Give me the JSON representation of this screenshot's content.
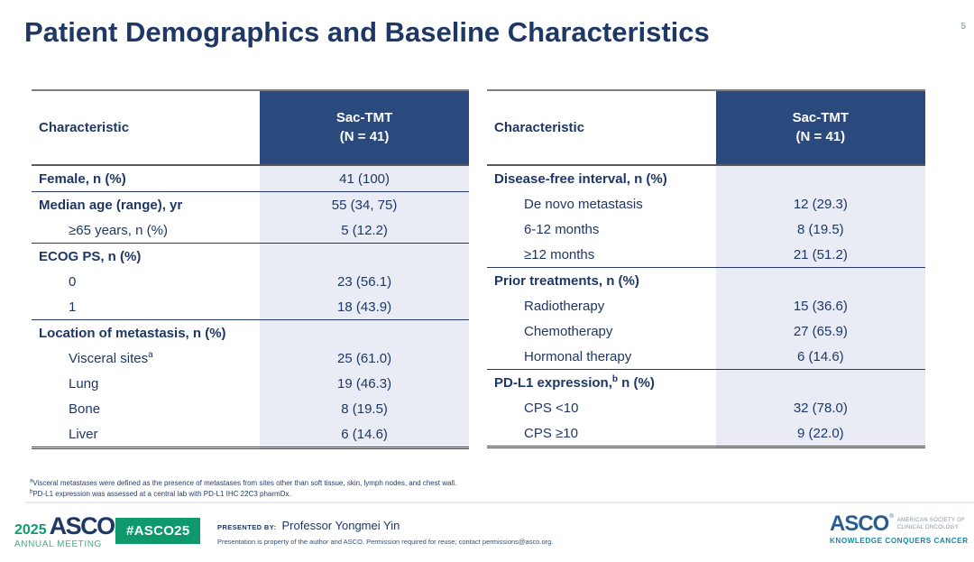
{
  "slide": {
    "title": "Patient Demographics and Baseline Characteristics",
    "page_number": "5"
  },
  "colors": {
    "navy_text": "#1E3765",
    "header_bg": "#2A4A7E",
    "value_column_bg": "#E9ECF4",
    "green_badge": "#10986D",
    "logo_blue": "#2A5E93",
    "tagline_teal": "#1787A8"
  },
  "tables": {
    "left": {
      "header": {
        "characteristic": "Characteristic",
        "arm_line1": "Sac-TMT",
        "arm_line2": "(N = 41)"
      },
      "rows": [
        {
          "label": "Female, n (%)",
          "bold": true,
          "indent": false,
          "sep": false,
          "value": "41 (100)"
        },
        {
          "label": "Median age (range), yr",
          "bold": true,
          "indent": false,
          "sep": true,
          "value": "55 (34, 75)"
        },
        {
          "label": "≥65 years, n (%)",
          "bold": false,
          "indent": true,
          "sep": false,
          "value": "5 (12.2)"
        },
        {
          "label": "ECOG PS, n (%)",
          "bold": true,
          "indent": false,
          "sep": true,
          "value": ""
        },
        {
          "label": "0",
          "bold": false,
          "indent": true,
          "sep": false,
          "value": "23 (56.1)"
        },
        {
          "label": "1",
          "bold": false,
          "indent": true,
          "sep": false,
          "value": "18 (43.9)"
        },
        {
          "label": "Location of metastasis, n (%)",
          "bold": true,
          "indent": false,
          "sep": true,
          "value": ""
        },
        {
          "label": "Visceral sites",
          "sup": "a",
          "bold": false,
          "indent": true,
          "sep": false,
          "value": "25 (61.0)"
        },
        {
          "label": "Lung",
          "bold": false,
          "indent": true,
          "sep": false,
          "value": "19 (46.3)"
        },
        {
          "label": "Bone",
          "bold": false,
          "indent": true,
          "sep": false,
          "value": "8 (19.5)"
        },
        {
          "label": "Liver",
          "bold": false,
          "indent": true,
          "sep": false,
          "value": "6 (14.6)"
        }
      ]
    },
    "right": {
      "header": {
        "characteristic": "Characteristic",
        "arm_line1": "Sac-TMT",
        "arm_line2": "(N = 41)"
      },
      "rows": [
        {
          "label": "Disease-free interval, n (%)",
          "bold": true,
          "indent": false,
          "sep": false,
          "value": ""
        },
        {
          "label": "De novo metastasis",
          "bold": false,
          "indent": true,
          "sep": false,
          "value": "12 (29.3)"
        },
        {
          "label": "6-12 months",
          "bold": false,
          "indent": true,
          "sep": false,
          "value": "8 (19.5)"
        },
        {
          "label": "≥12 months",
          "bold": false,
          "indent": true,
          "sep": false,
          "value": "21 (51.2)"
        },
        {
          "label": "Prior treatments, n (%)",
          "bold": true,
          "indent": false,
          "sep": true,
          "value": ""
        },
        {
          "label": "Radiotherapy",
          "bold": false,
          "indent": true,
          "sep": false,
          "value": "15 (36.6)"
        },
        {
          "label": "Chemotherapy",
          "bold": false,
          "indent": true,
          "sep": false,
          "value": "27 (65.9)"
        },
        {
          "label": "Hormonal therapy",
          "bold": false,
          "indent": true,
          "sep": false,
          "value": "6 (14.6)"
        },
        {
          "label": "PD-L1 expression,",
          "sup": "b",
          "label_after": " n (%)",
          "bold": true,
          "indent": false,
          "sep": true,
          "value": ""
        },
        {
          "label": "CPS <10",
          "bold": false,
          "indent": true,
          "sep": false,
          "value": "32 (78.0)"
        },
        {
          "label": "CPS ≥10",
          "bold": false,
          "indent": true,
          "sep": false,
          "value": "9 (22.0)"
        }
      ]
    }
  },
  "footnotes": [
    {
      "sup": "a",
      "text": "Visceral metastases were defined as the presence of metastases from sites other than soft tissue, skin, lymph nodes, and chest wall."
    },
    {
      "sup": "b",
      "text": "PD-L1 expression was assessed at a central lab with PD-L1 IHC 22C3 pharmDx."
    }
  ],
  "footer": {
    "year": "2025",
    "logo_asco": "ASCO",
    "logo_reg": "®",
    "logo_sub": "ANNUAL MEETING",
    "hashtag": "#ASCO25",
    "presented_by_label": "PRESENTED BY:",
    "presenter": "Professor Yongmei Yin",
    "disclaimer": "Presentation is property of the author and ASCO. Permission required for reuse; contact permissions@asco.org.",
    "asco_logo": {
      "name": "ASCO",
      "reg": "®",
      "society_line1": "AMERICAN SOCIETY OF",
      "society_line2": "CLINICAL ONCOLOGY",
      "tagline": "KNOWLEDGE CONQUERS CANCER"
    }
  }
}
